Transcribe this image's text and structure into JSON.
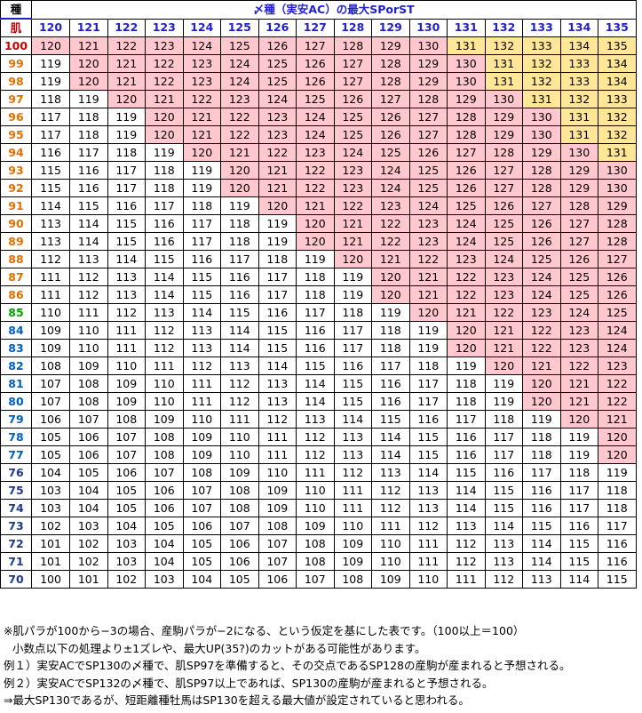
{
  "title": "〆種（実安AC）の最大SPorST",
  "corner_top": "種",
  "corner_bottom": "肌",
  "columns": [
    120,
    121,
    122,
    123,
    124,
    125,
    126,
    127,
    128,
    129,
    130,
    131,
    132,
    133,
    134,
    135
  ],
  "rows": [
    {
      "h": 100,
      "color": "#d00000",
      "v": [
        120,
        121,
        122,
        123,
        124,
        125,
        126,
        127,
        128,
        129,
        130,
        131,
        132,
        133,
        134,
        135
      ]
    },
    {
      "h": 99,
      "color": "#e07000",
      "v": [
        119,
        120,
        121,
        122,
        123,
        124,
        125,
        126,
        127,
        128,
        129,
        130,
        131,
        132,
        133,
        134
      ]
    },
    {
      "h": 98,
      "color": "#e07000",
      "v": [
        119,
        120,
        121,
        122,
        123,
        124,
        125,
        126,
        127,
        128,
        129,
        130,
        131,
        132,
        133,
        134
      ]
    },
    {
      "h": 97,
      "color": "#e07000",
      "v": [
        118,
        119,
        120,
        121,
        122,
        123,
        124,
        125,
        126,
        127,
        128,
        129,
        130,
        131,
        132,
        133
      ]
    },
    {
      "h": 96,
      "color": "#e07000",
      "v": [
        117,
        118,
        119,
        120,
        121,
        122,
        123,
        124,
        125,
        126,
        127,
        128,
        129,
        130,
        131,
        132
      ]
    },
    {
      "h": 95,
      "color": "#e07000",
      "v": [
        117,
        118,
        119,
        120,
        121,
        122,
        123,
        124,
        125,
        126,
        127,
        128,
        129,
        130,
        131,
        132
      ]
    },
    {
      "h": 94,
      "color": "#e07000",
      "v": [
        116,
        117,
        118,
        119,
        120,
        121,
        122,
        123,
        124,
        125,
        126,
        127,
        128,
        129,
        130,
        131
      ]
    },
    {
      "h": 93,
      "color": "#e07000",
      "v": [
        115,
        116,
        117,
        118,
        119,
        120,
        121,
        122,
        123,
        124,
        125,
        126,
        127,
        128,
        129,
        130
      ]
    },
    {
      "h": 92,
      "color": "#e07000",
      "v": [
        115,
        116,
        117,
        118,
        119,
        120,
        121,
        122,
        123,
        124,
        125,
        126,
        127,
        128,
        129,
        130
      ]
    },
    {
      "h": 91,
      "color": "#e07000",
      "v": [
        114,
        115,
        116,
        117,
        118,
        119,
        120,
        121,
        122,
        123,
        124,
        125,
        126,
        127,
        128,
        129
      ]
    },
    {
      "h": 90,
      "color": "#e07000",
      "v": [
        113,
        114,
        115,
        116,
        117,
        118,
        119,
        120,
        121,
        122,
        123,
        124,
        125,
        126,
        127,
        128
      ]
    },
    {
      "h": 89,
      "color": "#e07000",
      "v": [
        113,
        114,
        115,
        116,
        117,
        118,
        119,
        120,
        121,
        122,
        123,
        124,
        125,
        126,
        127,
        128
      ]
    },
    {
      "h": 88,
      "color": "#e07000",
      "v": [
        112,
        113,
        114,
        115,
        116,
        117,
        118,
        119,
        120,
        121,
        122,
        123,
        124,
        125,
        126,
        127
      ]
    },
    {
      "h": 87,
      "color": "#e07000",
      "v": [
        111,
        112,
        113,
        114,
        115,
        116,
        117,
        118,
        119,
        120,
        121,
        122,
        123,
        124,
        125,
        126
      ]
    },
    {
      "h": 86,
      "color": "#e07000",
      "v": [
        111,
        112,
        113,
        114,
        115,
        116,
        117,
        118,
        119,
        120,
        121,
        122,
        123,
        124,
        125,
        126
      ]
    },
    {
      "h": 85,
      "color": "#00a000",
      "v": [
        110,
        111,
        112,
        113,
        114,
        115,
        116,
        117,
        118,
        119,
        120,
        121,
        122,
        123,
        124,
        125
      ]
    },
    {
      "h": 84,
      "color": "#0060c0",
      "v": [
        109,
        110,
        111,
        112,
        113,
        114,
        115,
        116,
        117,
        118,
        119,
        120,
        121,
        122,
        123,
        124
      ]
    },
    {
      "h": 83,
      "color": "#0060c0",
      "v": [
        109,
        110,
        111,
        112,
        113,
        114,
        115,
        116,
        117,
        118,
        119,
        120,
        121,
        122,
        123,
        124
      ]
    },
    {
      "h": 82,
      "color": "#0060c0",
      "v": [
        108,
        109,
        110,
        111,
        112,
        113,
        114,
        115,
        116,
        117,
        118,
        119,
        120,
        121,
        122,
        123
      ]
    },
    {
      "h": 81,
      "color": "#0060c0",
      "v": [
        107,
        108,
        109,
        110,
        111,
        112,
        113,
        114,
        115,
        116,
        117,
        118,
        119,
        120,
        121,
        122
      ]
    },
    {
      "h": 80,
      "color": "#0060c0",
      "v": [
        107,
        108,
        109,
        110,
        111,
        112,
        113,
        114,
        115,
        116,
        117,
        118,
        119,
        120,
        121,
        122
      ]
    },
    {
      "h": 79,
      "color": "#0060c0",
      "v": [
        106,
        107,
        108,
        109,
        110,
        111,
        112,
        113,
        114,
        115,
        116,
        117,
        118,
        119,
        120,
        121
      ]
    },
    {
      "h": 78,
      "color": "#0060c0",
      "v": [
        105,
        106,
        107,
        108,
        109,
        110,
        111,
        112,
        113,
        114,
        115,
        116,
        117,
        118,
        119,
        120
      ]
    },
    {
      "h": 77,
      "color": "#0060c0",
      "v": [
        105,
        106,
        107,
        108,
        109,
        110,
        111,
        112,
        113,
        114,
        115,
        116,
        117,
        118,
        119,
        120
      ]
    },
    {
      "h": 76,
      "color": "#1f3a8a",
      "v": [
        104,
        105,
        106,
        107,
        108,
        109,
        110,
        111,
        112,
        113,
        114,
        115,
        116,
        117,
        118,
        119
      ]
    },
    {
      "h": 75,
      "color": "#1f3a8a",
      "v": [
        103,
        104,
        105,
        106,
        107,
        108,
        109,
        110,
        111,
        112,
        113,
        114,
        115,
        116,
        117,
        118
      ]
    },
    {
      "h": 74,
      "color": "#1f3a8a",
      "v": [
        103,
        104,
        105,
        106,
        107,
        108,
        109,
        110,
        111,
        112,
        113,
        114,
        115,
        116,
        117,
        118
      ]
    },
    {
      "h": 73,
      "color": "#1f3a8a",
      "v": [
        102,
        103,
        104,
        105,
        106,
        107,
        108,
        109,
        110,
        111,
        112,
        113,
        114,
        115,
        116,
        117
      ]
    },
    {
      "h": 72,
      "color": "#1f3a8a",
      "v": [
        101,
        102,
        103,
        104,
        105,
        106,
        107,
        108,
        109,
        110,
        111,
        112,
        113,
        114,
        115,
        116
      ]
    },
    {
      "h": 71,
      "color": "#1f3a8a",
      "v": [
        101,
        102,
        103,
        104,
        105,
        106,
        107,
        108,
        109,
        110,
        111,
        112,
        113,
        114,
        115,
        116
      ]
    },
    {
      "h": 70,
      "color": "#1f3a8a",
      "v": [
        100,
        101,
        102,
        103,
        104,
        105,
        106,
        107,
        108,
        109,
        110,
        111,
        112,
        113,
        114,
        115
      ]
    }
  ],
  "colors": {
    "pink": "#ffc7ce",
    "gold": "#ffe699",
    "header_blue": "#1f1fcf"
  },
  "notes": [
    "※肌パラが100から−3の場合、産駒パラが−2になる、という仮定を基にした表です。（100以上＝100）",
    "小数点以下の処理より±1ズレや、最大UP(35?)のカットがある可能性があります。",
    "例１）実安ACでSP130の〆種で、肌SP97を準備すると、その交点であるSP128の産駒が産まれると予想される。",
    "例２）実安ACでSP132の〆種で、肌SP97以上であれば、SP130の産駒が産まれると予想される。",
    "⇒最大SP130であるが、短距離種牡馬はSP130を超える最大値が設定されていると思われる。"
  ]
}
